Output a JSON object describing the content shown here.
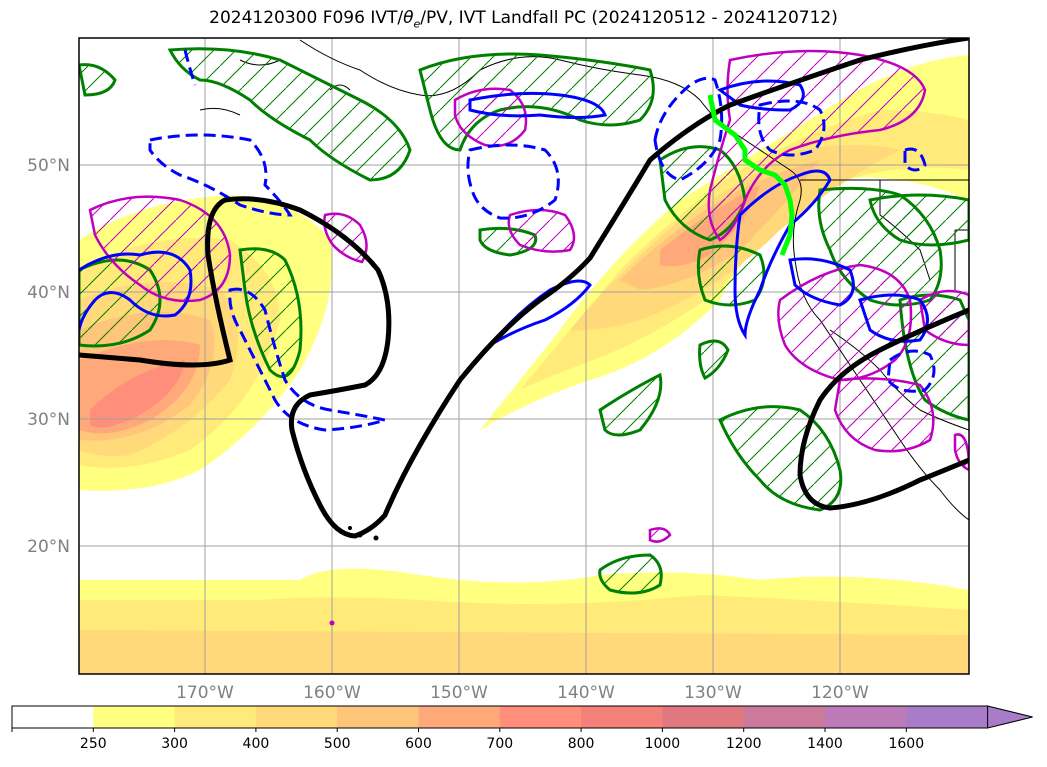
{
  "title": {
    "prefix": "2024120300 F096 IVT/",
    "theta": "θ",
    "theta_sub": "e",
    "suffix": "/PV, IVT Landfall PC (2024120512 - 2024120712)"
  },
  "map": {
    "lat_labels": [
      "20°N",
      "30°N",
      "40°N",
      "50°N"
    ],
    "lon_labels": [
      "170°W",
      "160°W",
      "150°W",
      "140°W",
      "130°W",
      "120°W"
    ]
  },
  "colorbar": {
    "ticks": [
      "250",
      "300",
      "400",
      "500",
      "600",
      "700",
      "800",
      "1000",
      "1200",
      "1400",
      "1600"
    ],
    "colors": [
      "#ffffff",
      "#ffff80",
      "#ffea7a",
      "#ffd97a",
      "#ffc57a",
      "#ffa87a",
      "#ff8f7a",
      "#f4807a",
      "#e0787f",
      "#cc7a9c",
      "#bd7ab9",
      "#a87cc8"
    ],
    "extend": "max"
  },
  "legend_colors": {
    "ivt_fill": "#ffe070",
    "theta_e_contour": "#008000",
    "pv_contour": "#0000ff",
    "pv_dashed": "#0000ff",
    "magenta_contour": "#c000c0",
    "ivt_landfall_line": "#000000",
    "landfall_track": "#00ff00"
  }
}
